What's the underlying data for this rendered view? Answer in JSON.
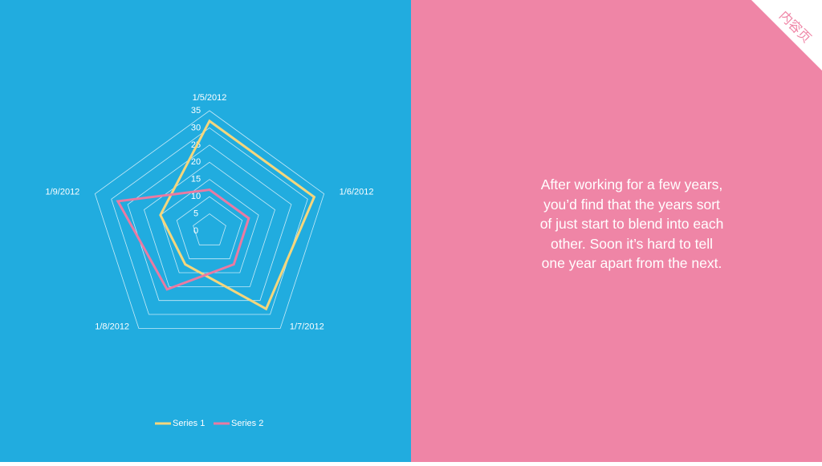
{
  "chart_data": {
    "type": "radar",
    "categories": [
      "1/5/2012",
      "1/6/2012",
      "1/7/2012",
      "1/8/2012",
      "1/9/2012"
    ],
    "series": [
      {
        "name": "Series 1",
        "color": "#f5d67c",
        "values": [
          32,
          32,
          28,
          12,
          15
        ]
      },
      {
        "name": "Series 2",
        "color": "#ea7aa2",
        "values": [
          12,
          12,
          12,
          21,
          28
        ]
      }
    ],
    "ylim": [
      0,
      35
    ],
    "yticks": [
      0,
      5,
      10,
      15,
      20,
      25,
      30,
      35
    ],
    "grid": true,
    "legend": "bottom"
  },
  "slide": {
    "body_text": "After working for a few years, you’d find that the years sort of just start to blend into each other. Soon it’s hard to tell one year apart from the next.",
    "corner_label": "内容页"
  }
}
